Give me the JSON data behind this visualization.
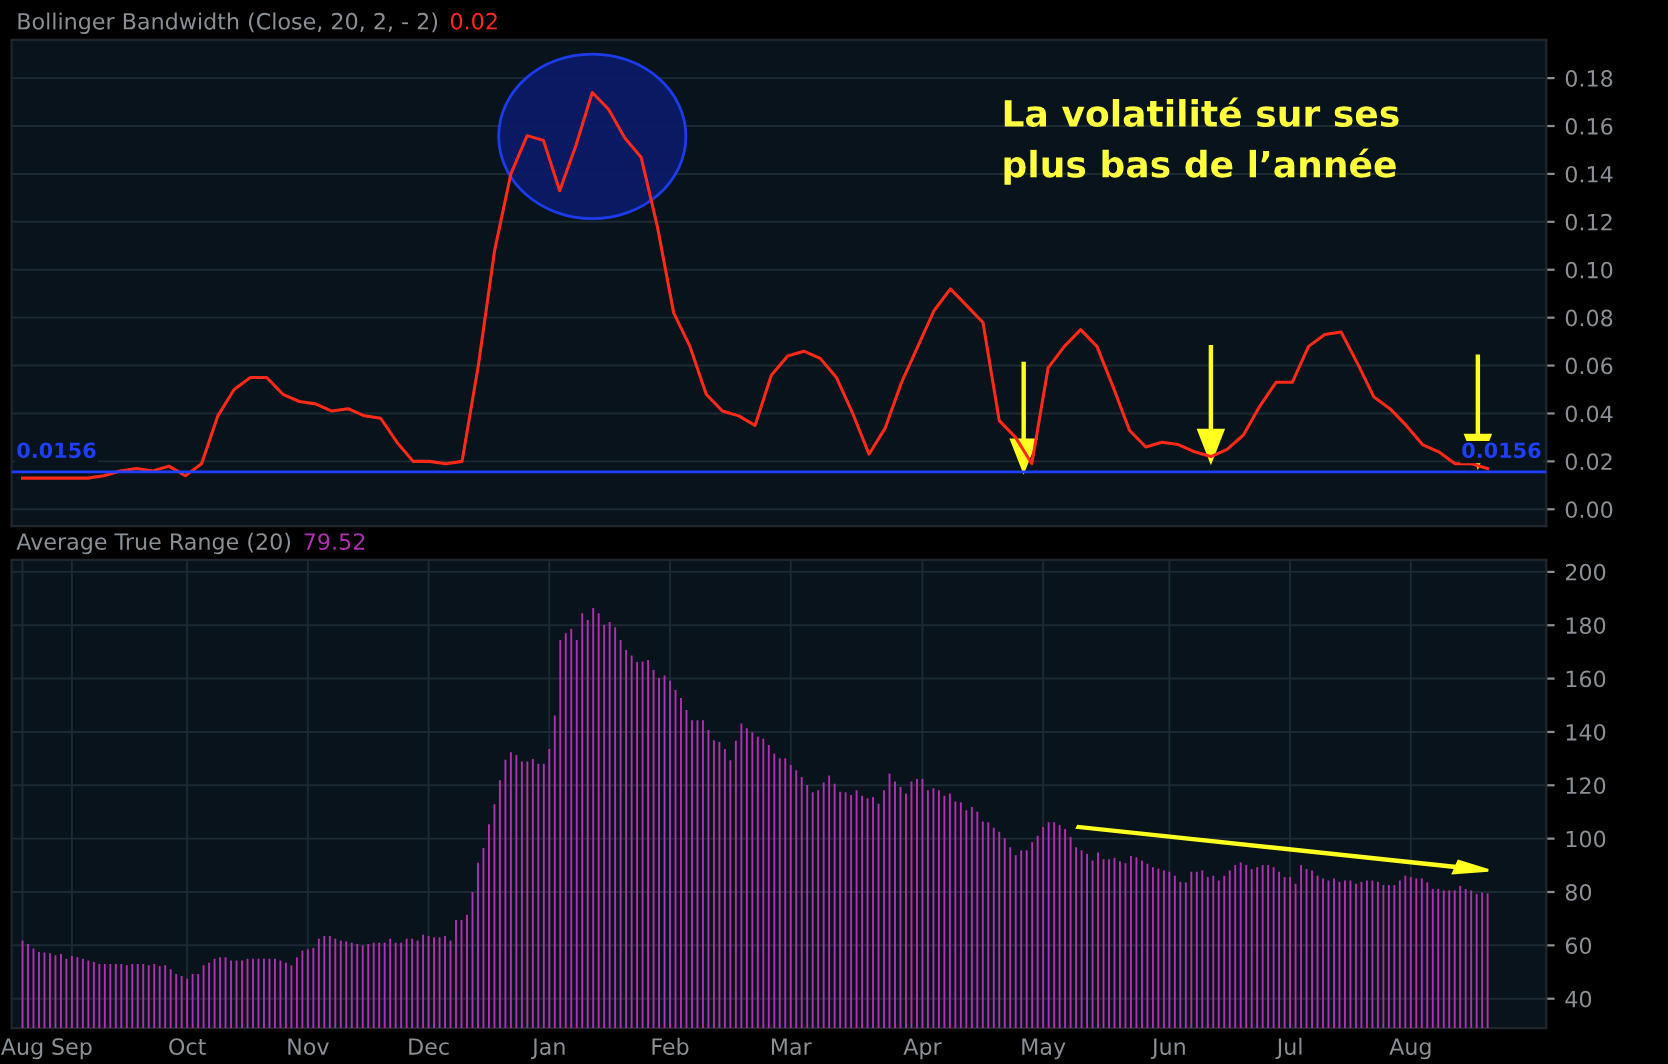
{
  "chart_data": [
    {
      "type": "line",
      "title": "Bollinger Bandwidth (Close, 20, 2, - 2)",
      "subtitle": "0.02",
      "categories": [
        null,
        null,
        null,
        null,
        null,
        null,
        null,
        null,
        null,
        null,
        null,
        null,
        null,
        null,
        null,
        null,
        null,
        null,
        null,
        null,
        null,
        null,
        null,
        null,
        null,
        null,
        null,
        null,
        null,
        null,
        null,
        null,
        null,
        null,
        null,
        null,
        null,
        null,
        null,
        null,
        null,
        null,
        null,
        null,
        null,
        null,
        null,
        null,
        null,
        null,
        null,
        null,
        null,
        null,
        null,
        null,
        null,
        null,
        null,
        null,
        null,
        null,
        null,
        null,
        null,
        null,
        null,
        null,
        null,
        null,
        null,
        null,
        null,
        null,
        null,
        null,
        null,
        null,
        null,
        null,
        null,
        null,
        null,
        null,
        null,
        null,
        null,
        null,
        null,
        null,
        null
      ],
      "series": [
        {
          "color": "#ff2a1a",
          "values": [
            0.013,
            0.013,
            0.013,
            0.013,
            0.013,
            0.014,
            0.016,
            0.017,
            0.016,
            0.018,
            0.014,
            0.019,
            0.039,
            0.05,
            0.055,
            0.055,
            0.048,
            0.045,
            0.044,
            0.041,
            0.042,
            0.039,
            0.038,
            0.028,
            0.02,
            0.02,
            0.019,
            0.02,
            0.06,
            0.108,
            0.14,
            0.156,
            0.154,
            0.133,
            0.152,
            0.174,
            0.167,
            0.155,
            0.147,
            0.118,
            0.082,
            0.068,
            0.048,
            0.041,
            0.039,
            0.035,
            0.056,
            0.064,
            0.066,
            0.063,
            0.055,
            0.04,
            0.023,
            0.034,
            0.053,
            0.068,
            0.083,
            0.092,
            0.085,
            0.078,
            0.037,
            0.03,
            0.019,
            0.059,
            0.068,
            0.075,
            0.068,
            0.051,
            0.033,
            0.026,
            0.028,
            0.027,
            0.024,
            0.022,
            0.025,
            0.031,
            0.043,
            0.053,
            0.053,
            0.068,
            0.073,
            0.074,
            0.061,
            0.047,
            0.042,
            0.035,
            0.027,
            0.024,
            0.019,
            0.019,
            0.017
          ]
        }
      ],
      "ref_lines": [
        {
          "axis": "y",
          "value": 0.0156,
          "label": "0.0156",
          "color": "#1f3fff"
        }
      ],
      "annotations": [
        "La volatilité sur ses\nplus bas de l’année"
      ],
      "ylim": [
        -0.007,
        0.196
      ],
      "yticks": [
        {
          "value": 0,
          "label": "0.00"
        },
        {
          "value": 0.02,
          "label": "0.02"
        },
        {
          "value": 0.04,
          "label": "0.04"
        },
        {
          "value": 0.06,
          "label": "0.06"
        },
        {
          "value": 0.08,
          "label": "0.08"
        },
        {
          "value": 0.1,
          "label": "0.10"
        },
        {
          "value": 0.12,
          "label": "0.12"
        },
        {
          "value": 0.14,
          "label": "0.14"
        },
        {
          "value": 0.16,
          "label": "0.16"
        },
        {
          "value": 0.18,
          "label": "0.18"
        }
      ],
      "tick_labels": "y",
      "grid": "y"
    },
    {
      "type": "bar",
      "title": "Average True Range (20)",
      "subtitle": "79.52",
      "categories": [
        "Aug",
        null,
        null,
        null,
        null,
        null,
        null,
        null,
        null,
        "Sep",
        null,
        null,
        null,
        null,
        null,
        null,
        null,
        null,
        null,
        null,
        null,
        null,
        null,
        null,
        null,
        null,
        null,
        null,
        null,
        null,
        "Oct",
        null,
        null,
        null,
        null,
        null,
        null,
        null,
        null,
        null,
        null,
        null,
        null,
        null,
        null,
        null,
        null,
        null,
        null,
        null,
        null,
        null,
        "Nov",
        null,
        null,
        null,
        null,
        null,
        null,
        null,
        null,
        null,
        null,
        null,
        null,
        null,
        null,
        null,
        null,
        null,
        null,
        null,
        null,
        null,
        "Dec",
        null,
        null,
        null,
        null,
        null,
        null,
        null,
        null,
        null,
        null,
        null,
        null,
        null,
        null,
        null,
        null,
        null,
        null,
        null,
        null,
        null,
        "Jan",
        null,
        null,
        null,
        null,
        null,
        null,
        null,
        null,
        null,
        null,
        null,
        null,
        null,
        null,
        null,
        null,
        null,
        null,
        null,
        null,
        null,
        "Feb",
        null,
        null,
        null,
        null,
        null,
        null,
        null,
        null,
        null,
        null,
        null,
        null,
        null,
        null,
        null,
        null,
        null,
        null,
        null,
        null,
        null,
        "Mar",
        null,
        null,
        null,
        null,
        null,
        null,
        null,
        null,
        null,
        null,
        null,
        null,
        null,
        null,
        null,
        null,
        null,
        null,
        null,
        null,
        null,
        null,
        null,
        "Apr",
        null,
        null,
        null,
        null,
        null,
        null,
        null,
        null,
        null,
        null,
        null,
        null,
        null,
        null,
        null,
        null,
        null,
        null,
        null,
        null,
        null,
        "May",
        null,
        null,
        null,
        null,
        null,
        null,
        null,
        null,
        null,
        null,
        null,
        null,
        null,
        null,
        null,
        null,
        null,
        null,
        null,
        null,
        null,
        null,
        "Jun",
        null,
        null,
        null,
        null,
        null,
        null,
        null,
        null,
        null,
        null,
        null,
        null,
        null,
        null,
        null,
        null,
        null,
        null,
        null,
        null,
        null,
        "Jul",
        null,
        null,
        null,
        null,
        null,
        null,
        null,
        null,
        null,
        null,
        null,
        null,
        null,
        null,
        null,
        null,
        null,
        null,
        null,
        null,
        null,
        "Aug",
        null,
        null,
        null,
        null,
        null,
        null,
        null,
        null,
        null,
        null,
        null,
        null,
        null,
        null
      ],
      "series": [
        {
          "color": "#b030b0",
          "values": [
            61.8,
            60.5,
            58.8,
            57.5,
            57.3,
            57,
            56.3,
            56.8,
            55,
            56,
            55.5,
            55,
            54.3,
            53.8,
            53,
            53,
            53,
            53,
            53,
            52.5,
            53,
            53,
            53,
            52.5,
            53,
            52.3,
            52.5,
            51,
            49.3,
            48.5,
            47.5,
            49.3,
            49.3,
            52.5,
            53.5,
            55,
            55.5,
            55.5,
            54.3,
            54.3,
            54.3,
            55,
            55,
            55,
            55,
            55,
            55,
            54.3,
            53.5,
            52.5,
            55.5,
            58,
            58.5,
            59,
            62.5,
            63.5,
            63.5,
            62.5,
            61.8,
            61.5,
            61,
            60.5,
            60,
            60.5,
            61,
            61,
            61,
            62.5,
            61,
            61,
            62.5,
            62.5,
            61.8,
            64,
            63.5,
            63,
            63,
            63.5,
            61.8,
            69.5,
            69.5,
            71.5,
            80,
            91,
            96.5,
            105.4,
            112.9,
            121.9,
            129.6,
            132.4,
            131.4,
            128.9,
            128.9,
            129.9,
            128.1,
            128.1,
            133.6,
            146.2,
            174.5,
            177,
            178.7,
            174.5,
            184.5,
            182,
            186.5,
            184.5,
            180.2,
            181.2,
            179.2,
            174.5,
            170.7,
            168.7,
            166.2,
            166.4,
            167,
            163.2,
            160.2,
            161.2,
            159.2,
            155.7,
            152.7,
            148.2,
            144.4,
            144.4,
            144.4,
            140.7,
            136.9,
            136.2,
            133.6,
            129.4,
            136.7,
            143.2,
            141.4,
            139.9,
            138.2,
            137.4,
            135.1,
            131.9,
            130.1,
            130.1,
            127.6,
            125.6,
            123.1,
            120.1,
            117.4,
            118.1,
            121,
            123.7,
            120.6,
            117.6,
            117.4,
            116.4,
            118.1,
            116.1,
            115.1,
            115.6,
            113.1,
            118.1,
            124.4,
            121.4,
            119.4,
            116.9,
            121.4,
            122.4,
            122.4,
            118.1,
            118.9,
            118.1,
            116.1,
            116.9,
            113.9,
            113.6,
            110.6,
            111.9,
            110.1,
            106.4,
            106.1,
            104.1,
            102.6,
            100.1,
            96.8,
            93.8,
            95.6,
            95.6,
            98.6,
            101.1,
            104.4,
            106.1,
            106.1,
            105.1,
            103.6,
            100.6,
            96.8,
            95.6,
            94.3,
            91.8,
            94.8,
            92.3,
            92.3,
            92.8,
            91.5,
            90.8,
            93.5,
            93,
            91.8,
            90.6,
            89.3,
            88.8,
            88.1,
            87.6,
            86.1,
            83.8,
            83.6,
            87.6,
            87.6,
            88.1,
            85.6,
            86.1,
            84.3,
            86.1,
            88.1,
            90.1,
            91.1,
            90.1,
            88.6,
            89.3,
            90.1,
            90.1,
            89.3,
            87.6,
            85.6,
            85.6,
            83.1,
            90.1,
            88.6,
            88.1,
            86.1,
            85.1,
            84.3,
            85.1,
            83.8,
            84.3,
            84.3,
            83.1,
            83.8,
            84.3,
            84.3,
            83.8,
            82.6,
            82.6,
            82.6,
            84.3,
            86.1,
            85.6,
            85.1,
            85.1,
            83.6,
            81.1,
            81.1,
            80.6,
            80.6,
            80.6,
            82.3,
            81.1,
            80.6,
            79.3,
            79.8,
            79.5
          ]
        }
      ],
      "ylim": [
        29,
        204.5
      ],
      "yticks": [
        40,
        60,
        80,
        100,
        120,
        140,
        160,
        180,
        200
      ],
      "grid": true
    }
  ]
}
